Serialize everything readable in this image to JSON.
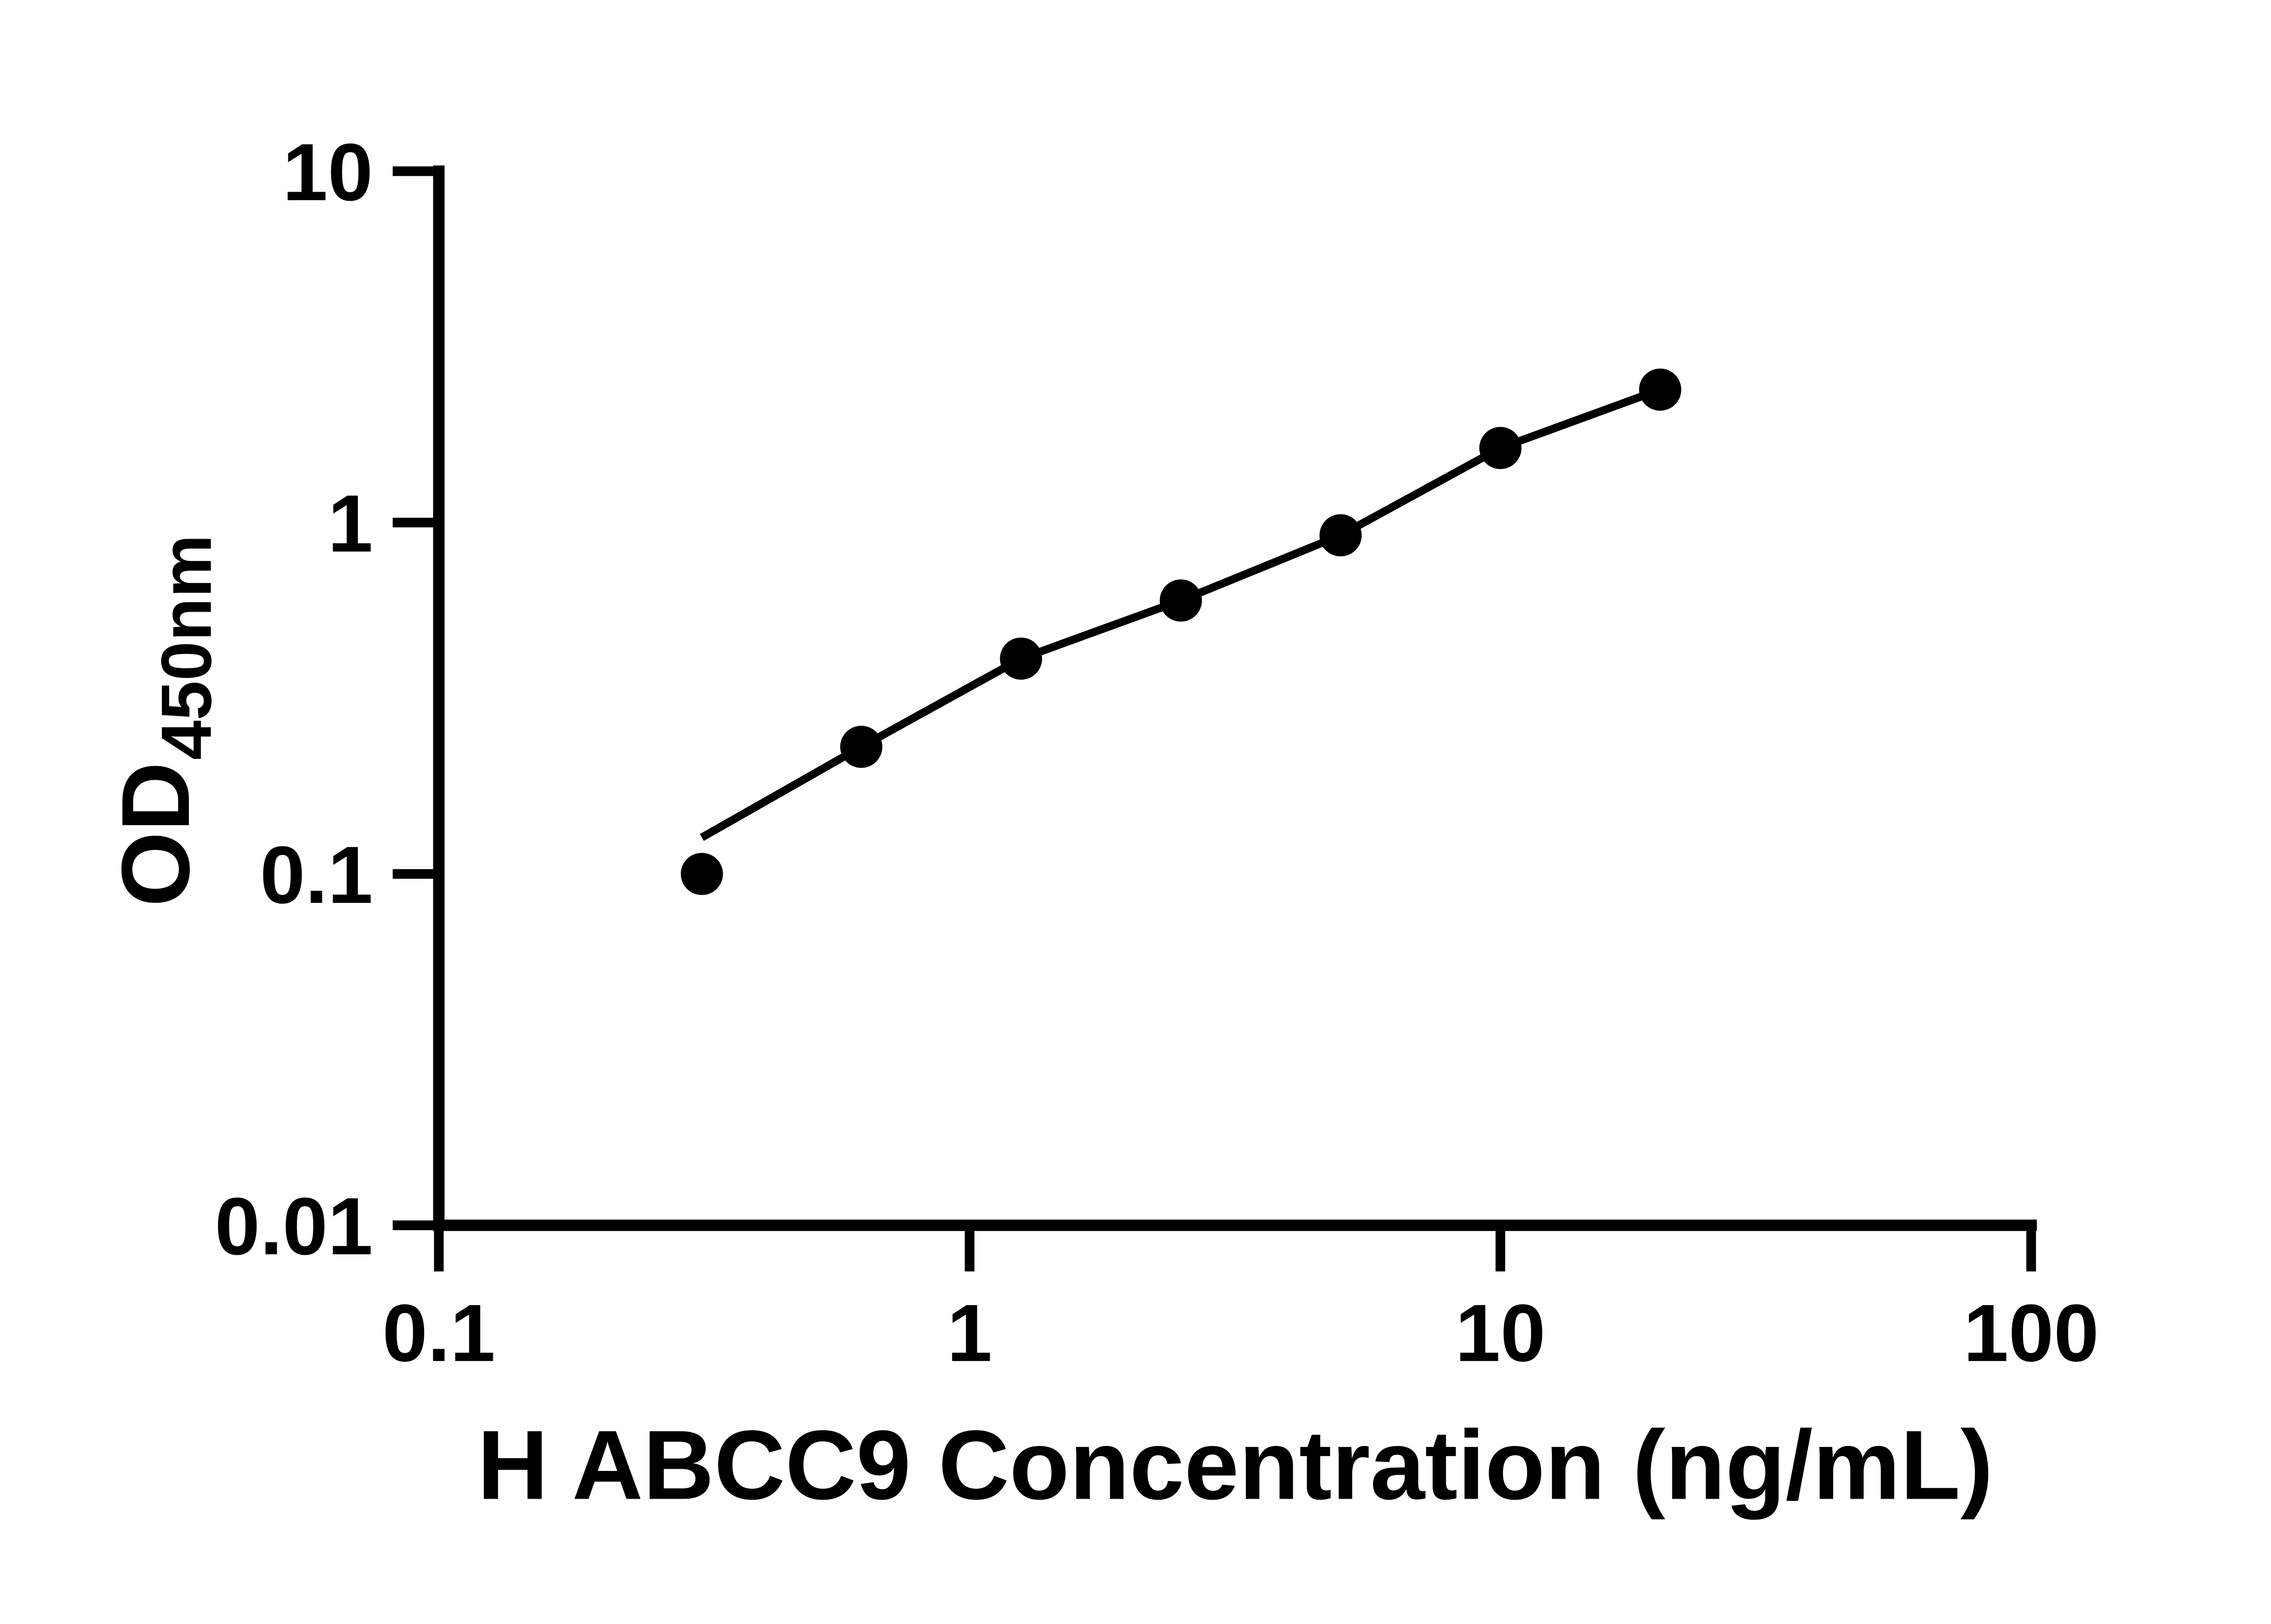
{
  "page": {
    "background_color": "#ffffff",
    "foreground_color": "#000000"
  },
  "chart_data": {
    "type": "scatter",
    "title": "",
    "xlabel": "H ABCC9 Concentration (ng/mL)",
    "ylabel_main": "OD",
    "ylabel_sub": "450nm",
    "x_scale": "log",
    "y_scale": "log",
    "xlim": [
      0.1,
      100
    ],
    "ylim": [
      0.01,
      10
    ],
    "grid": false,
    "legend": false,
    "x_ticks": [
      {
        "value": 0.1,
        "label": "0.1"
      },
      {
        "value": 1,
        "label": "1"
      },
      {
        "value": 10,
        "label": "10"
      },
      {
        "value": 100,
        "label": "100"
      }
    ],
    "y_ticks": [
      {
        "value": 10,
        "label": "10"
      },
      {
        "value": 1,
        "label": "1"
      },
      {
        "value": 0.1,
        "label": "0.1"
      },
      {
        "value": 0.01,
        "label": "0.01"
      }
    ],
    "series": [
      {
        "name": "standard-curve-points",
        "marker": "circle",
        "color": "#000000",
        "points": [
          {
            "x": 0.313,
            "y": 0.1
          },
          {
            "x": 0.625,
            "y": 0.23
          },
          {
            "x": 1.25,
            "y": 0.41
          },
          {
            "x": 2.5,
            "y": 0.6
          },
          {
            "x": 5,
            "y": 0.92
          },
          {
            "x": 10,
            "y": 1.63
          },
          {
            "x": 20,
            "y": 2.39
          }
        ]
      }
    ],
    "trendline": {
      "name": "fitted-curve",
      "color": "#000000",
      "points": [
        {
          "x": 0.313,
          "y": 0.127
        },
        {
          "x": 0.625,
          "y": 0.23
        },
        {
          "x": 1.25,
          "y": 0.41
        },
        {
          "x": 2.5,
          "y": 0.6
        },
        {
          "x": 5,
          "y": 0.92
        },
        {
          "x": 10,
          "y": 1.63
        },
        {
          "x": 20,
          "y": 2.39
        }
      ]
    }
  }
}
